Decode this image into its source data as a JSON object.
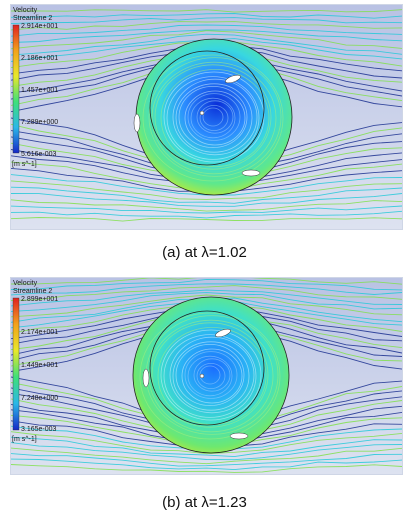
{
  "panels": [
    {
      "legend": {
        "title": "Velocity",
        "subtitle": "Streamline 2",
        "ticks": [
          "2.914e+001",
          "2.186e+001",
          "1.457e+001",
          "7.289e+000",
          "5.616e-003"
        ],
        "unit": "[m s^-1]"
      },
      "caption": "(a) at λ=1.02"
    },
    {
      "legend": {
        "title": "Velocity",
        "subtitle": "Streamline 2",
        "ticks": [
          "2.899e+001",
          "2.174e+001",
          "1.449e+001",
          "7.248e+000",
          "3.165e-003"
        ],
        "unit": "[m s^-1]"
      },
      "caption": "(b) at λ=1.23"
    }
  ],
  "colors": {
    "background": "#c9cfe6",
    "streamline_low": "#1a2f8f",
    "streamline_mid": "#22c9d8",
    "streamline_high": "#7fe04a",
    "rotor_core": "#2f86ff"
  }
}
